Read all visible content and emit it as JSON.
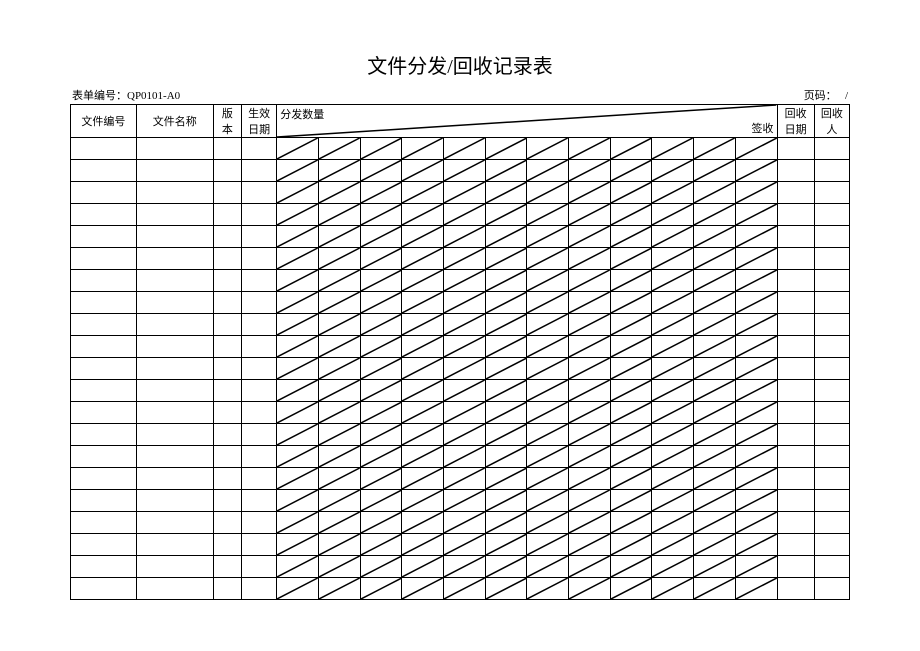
{
  "title": "文件分发/回收记录表",
  "form_no_label": "表单编号：",
  "form_no_value": "QP0101-A0",
  "page_label": "页码：",
  "page_sep": "/",
  "headers": {
    "doc_no": "文件编号",
    "doc_name": "文件名称",
    "version_l1": "版",
    "version_l2": "本",
    "eff_date_l1": "生效",
    "eff_date_l2": "日期",
    "dist_qty": "分发数量",
    "sign": "签收",
    "rec_date_l1": "回收",
    "rec_date_l2": "日期",
    "rec_by_l1": "回收",
    "rec_by_l2": "人"
  },
  "layout": {
    "dist_col_count": 12,
    "data_row_count": 21,
    "line_color": "#000000",
    "background": "#ffffff",
    "title_fontsize": 20,
    "cell_fontsize": 11
  }
}
